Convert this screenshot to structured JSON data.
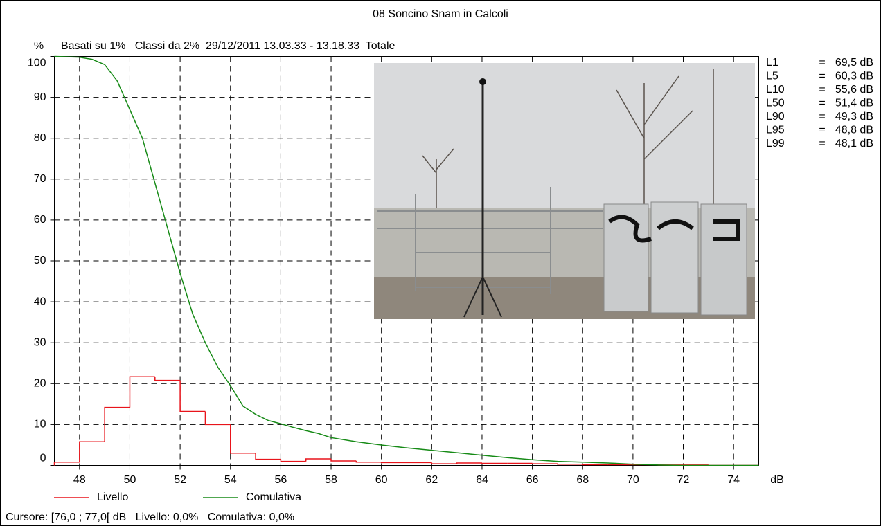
{
  "chart_data": {
    "type": "histogram",
    "title": "08 Soncino Snam in Calcoli",
    "subtitle": "Basati su 1%   Classi da 2%  29/12/2011 13.03.33 - 13.18.33  Totale",
    "y_label": "%",
    "x_label": "dB",
    "bins": [
      47,
      48,
      49,
      50,
      51,
      52,
      53,
      54,
      55,
      56,
      57,
      58,
      59,
      60,
      61,
      62,
      63,
      64,
      65,
      66,
      67,
      68,
      69,
      70,
      71,
      72,
      73,
      74,
      75
    ],
    "series": [
      {
        "name": "Livello",
        "color": "#e8141b",
        "type": "histogram",
        "values": [
          0.8,
          5.8,
          14.2,
          21.7,
          20.8,
          13.2,
          10.0,
          3.0,
          1.5,
          1.0,
          1.6,
          1.1,
          0.8,
          0.7,
          0.7,
          0.4,
          0.6,
          0.5,
          0.5,
          0.4,
          0.3,
          0.2,
          0.2,
          0.2,
          0.1,
          0.1,
          0,
          0
        ]
      },
      {
        "name": "Comulativa",
        "color": "#168a16",
        "type": "line",
        "x": [
          47,
          48,
          48.5,
          49,
          49.5,
          50,
          50.5,
          51,
          51.5,
          52,
          52.5,
          53,
          53.5,
          54,
          54.5,
          55,
          55.5,
          56,
          56.5,
          57,
          57.5,
          58,
          59,
          60,
          61,
          62,
          63,
          64,
          65,
          66,
          67,
          68,
          69,
          70,
          71,
          72,
          74,
          75
        ],
        "values": [
          100,
          99.8,
          99.3,
          98,
          94,
          87,
          80,
          69,
          58,
          47,
          37,
          30,
          24,
          19.5,
          14.5,
          12.5,
          11,
          10.2,
          9.3,
          8.5,
          7.8,
          6.8,
          5.8,
          5.0,
          4.3,
          3.7,
          3.1,
          2.5,
          1.9,
          1.4,
          1.0,
          0.8,
          0.6,
          0.3,
          0.1,
          0,
          0,
          0
        ]
      }
    ],
    "xlim": [
      47,
      75
    ],
    "ylim": [
      0,
      100
    ],
    "xticks": [
      48,
      50,
      52,
      54,
      56,
      58,
      60,
      62,
      64,
      66,
      68,
      70,
      72,
      74
    ],
    "yticks": [
      0,
      10,
      20,
      30,
      40,
      50,
      60,
      70,
      80,
      90,
      100
    ],
    "grid": true,
    "legend": "bottom-left",
    "stats": [
      {
        "label": "L1",
        "sign": "=",
        "value": "69,5 dB"
      },
      {
        "label": "L5",
        "sign": "=",
        "value": "60,3 dB"
      },
      {
        "label": "L10",
        "sign": "=",
        "value": "55,6 dB"
      },
      {
        "label": "L50",
        "sign": "=",
        "value": "51,4 dB"
      },
      {
        "label": "L90",
        "sign": "=",
        "value": "49,3 dB"
      },
      {
        "label": "L95",
        "sign": "=",
        "value": "48,8 dB"
      },
      {
        "label": "L99",
        "sign": "=",
        "value": "48,1 dB"
      }
    ],
    "cursor": "Cursore: [76,0 ; 77,0[ dB   Livello: 0,0%   Comulativa: 0,0%"
  }
}
